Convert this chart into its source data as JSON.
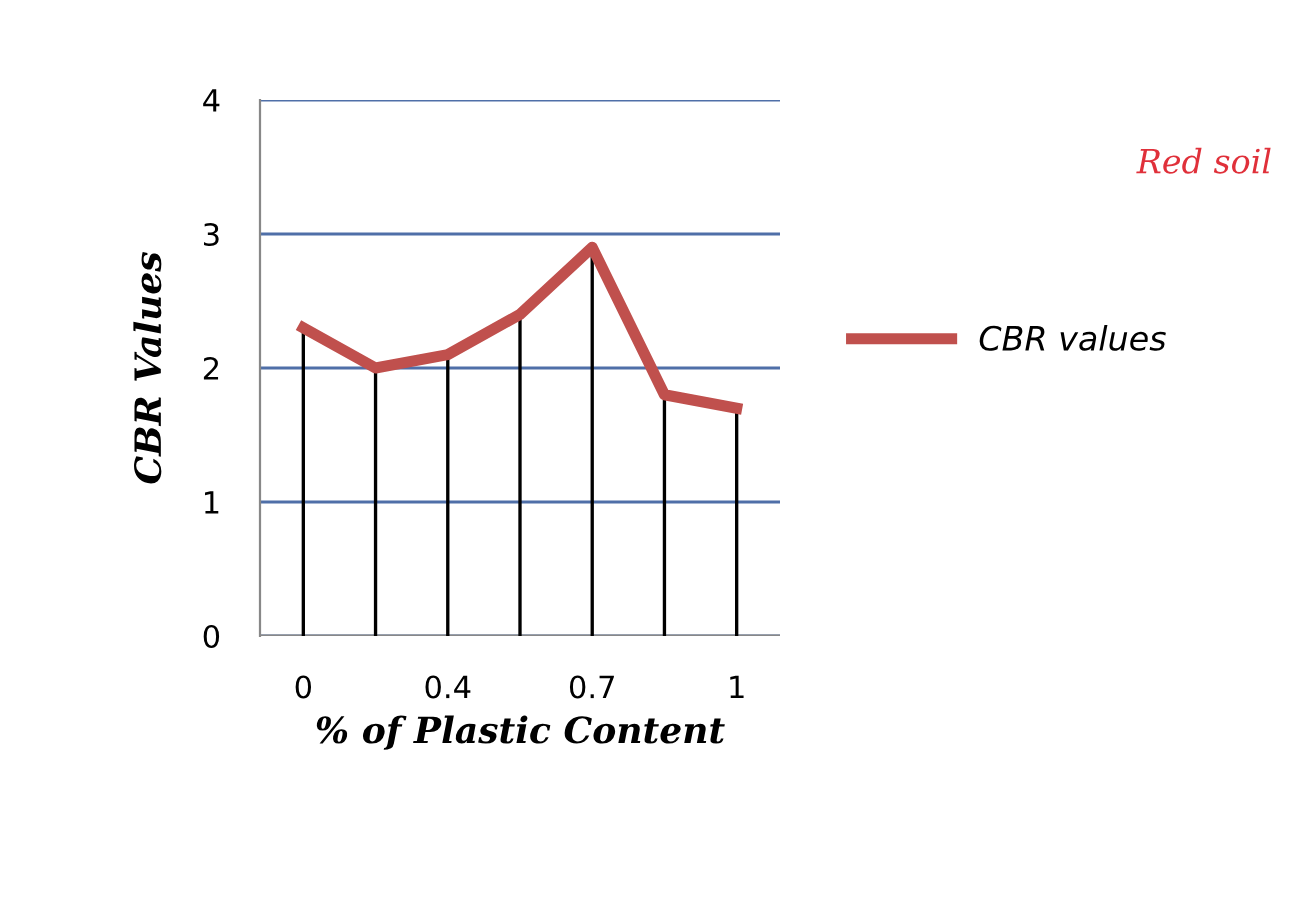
{
  "chart_data": {
    "type": "line",
    "xlabel": "% of Plastic Content",
    "ylabel": "CBR Values",
    "categories": [
      "0",
      null,
      "0.4",
      null,
      "0.7",
      null,
      "1"
    ],
    "series": [
      {
        "name": "CBR values",
        "color": "#c0504d",
        "values": [
          2.3,
          2.0,
          2.1,
          2.4,
          2.9,
          1.8,
          1.7
        ],
        "errors": [
          [
            0,
            2.3
          ],
          [
            0,
            2.0
          ],
          [
            0,
            2.1
          ],
          [
            0,
            2.4
          ],
          [
            0,
            2.9
          ],
          [
            0,
            1.8
          ],
          [
            0,
            1.7
          ]
        ]
      }
    ],
    "ylim": [
      0,
      4
    ],
    "yticks": [
      0,
      1,
      2,
      3,
      4
    ],
    "grid": "y",
    "legend": "right",
    "marker": "none",
    "annotations": [
      "Red soil"
    ]
  }
}
